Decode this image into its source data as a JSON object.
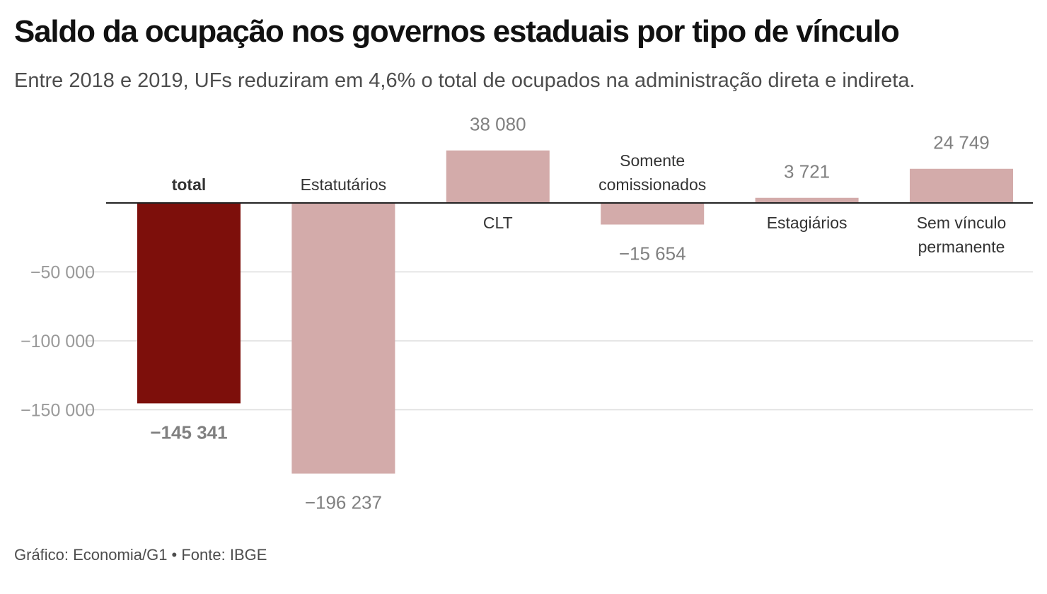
{
  "title": "Saldo da ocupação nos governos estaduais por tipo de vínculo",
  "subtitle": "Entre 2018 e 2019, UFs reduziram em 4,6% o total de ocupados na administração direta e indireta.",
  "footer": "Gráfico: Economia/G1 • Fonte: IBGE",
  "colors": {
    "highlight": "#7d0f0b",
    "bar": "#d3abaa",
    "grid": "#dddddd",
    "zero_line": "#222222",
    "tick_text": "#9a9a9a",
    "value_text": "#808080",
    "category_text": "#333333"
  },
  "chart_data": {
    "type": "bar",
    "title": "Saldo da ocupação nos governos estaduais por tipo de vínculo",
    "subtitle": "Entre 2018 e 2019, UFs reduziram em 4,6% o total de ocupados na administração direta e indireta.",
    "categories": [
      [
        "total"
      ],
      [
        "Estatutários"
      ],
      [
        "CLT"
      ],
      [
        "Somente",
        "comissionados"
      ],
      [
        "Estagiários"
      ],
      [
        "Sem vínculo",
        "permanente"
      ]
    ],
    "values": [
      -145341,
      -196237,
      38080,
      -15654,
      3721,
      24749
    ],
    "value_labels": [
      "−145 341",
      "−196 237",
      "38 080",
      "−15 654",
      "3 721",
      "24 749"
    ],
    "highlight": [
      true,
      false,
      false,
      false,
      false,
      false
    ],
    "y_ticks": [
      {
        "value": -50000,
        "label": "−50 000"
      },
      {
        "value": -100000,
        "label": "−100 000"
      },
      {
        "value": -150000,
        "label": "−150 000"
      }
    ],
    "ylim": [
      -200000,
      40000
    ],
    "grid": true,
    "legend": "none",
    "xlabel": "",
    "ylabel": ""
  }
}
